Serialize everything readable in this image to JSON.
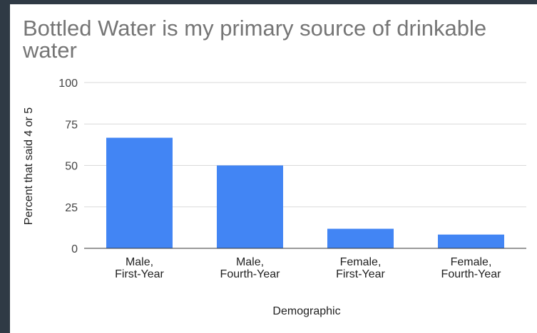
{
  "chart_data": {
    "type": "bar",
    "title": "Bottled Water is my primary source of drinkable water",
    "xlabel": "Demographic",
    "ylabel": "Percent that said 4 or 5",
    "categories": [
      [
        "Male,",
        "First-Year"
      ],
      [
        "Male,",
        "Fourth-Year"
      ],
      [
        "Female,",
        "First-Year"
      ],
      [
        "Female,",
        "Fourth-Year"
      ]
    ],
    "values": [
      66.7,
      50,
      11.8,
      8.3
    ],
    "ylim": [
      0,
      100
    ],
    "yticks": [
      "0",
      "25",
      "50",
      "75",
      "100"
    ],
    "grid": true,
    "legend": "none",
    "colors": {
      "bar": "#4285f4",
      "grid": "#d9d9d9",
      "axis": "#333333"
    }
  }
}
